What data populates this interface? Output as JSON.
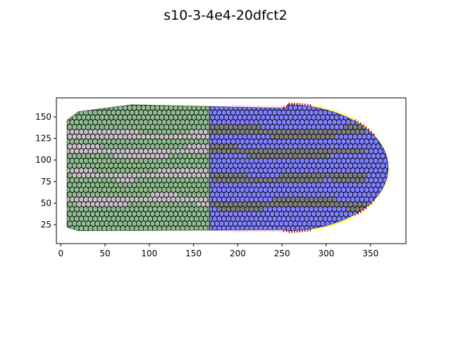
{
  "chart_data": {
    "type": "other",
    "title": "s10-3-4e4-20dfct2",
    "xlabel": "",
    "ylabel": "",
    "xlim": [
      -5,
      390
    ],
    "ylim": [
      3,
      172
    ],
    "xticks": [
      0,
      50,
      100,
      150,
      200,
      250,
      300,
      350
    ],
    "yticks": [
      25,
      50,
      75,
      100,
      125,
      150
    ],
    "grid": false,
    "colors": {
      "green_cells": "#8fbc8f",
      "blue_cells": "#8080ff",
      "gray_band_left": "#c8c0c8",
      "gray_band_right": "#808080",
      "cell_edge": "#000000",
      "tick_pink": "#ffb6c1",
      "tick_red": "#cc0000",
      "tick_yellow": "#ffff00"
    },
    "regions": {
      "green": {
        "x_range": [
          7,
          168
        ],
        "y_range": [
          18,
          165
        ]
      },
      "blue": {
        "x_range": [
          168,
          370
        ],
        "y_range": [
          18,
          165
        ]
      },
      "boundary_x": 168
    },
    "bands_left_centers": [
      128,
      110,
      85,
      55
    ],
    "bands_right_centers": [
      133,
      107,
      78,
      48
    ]
  }
}
